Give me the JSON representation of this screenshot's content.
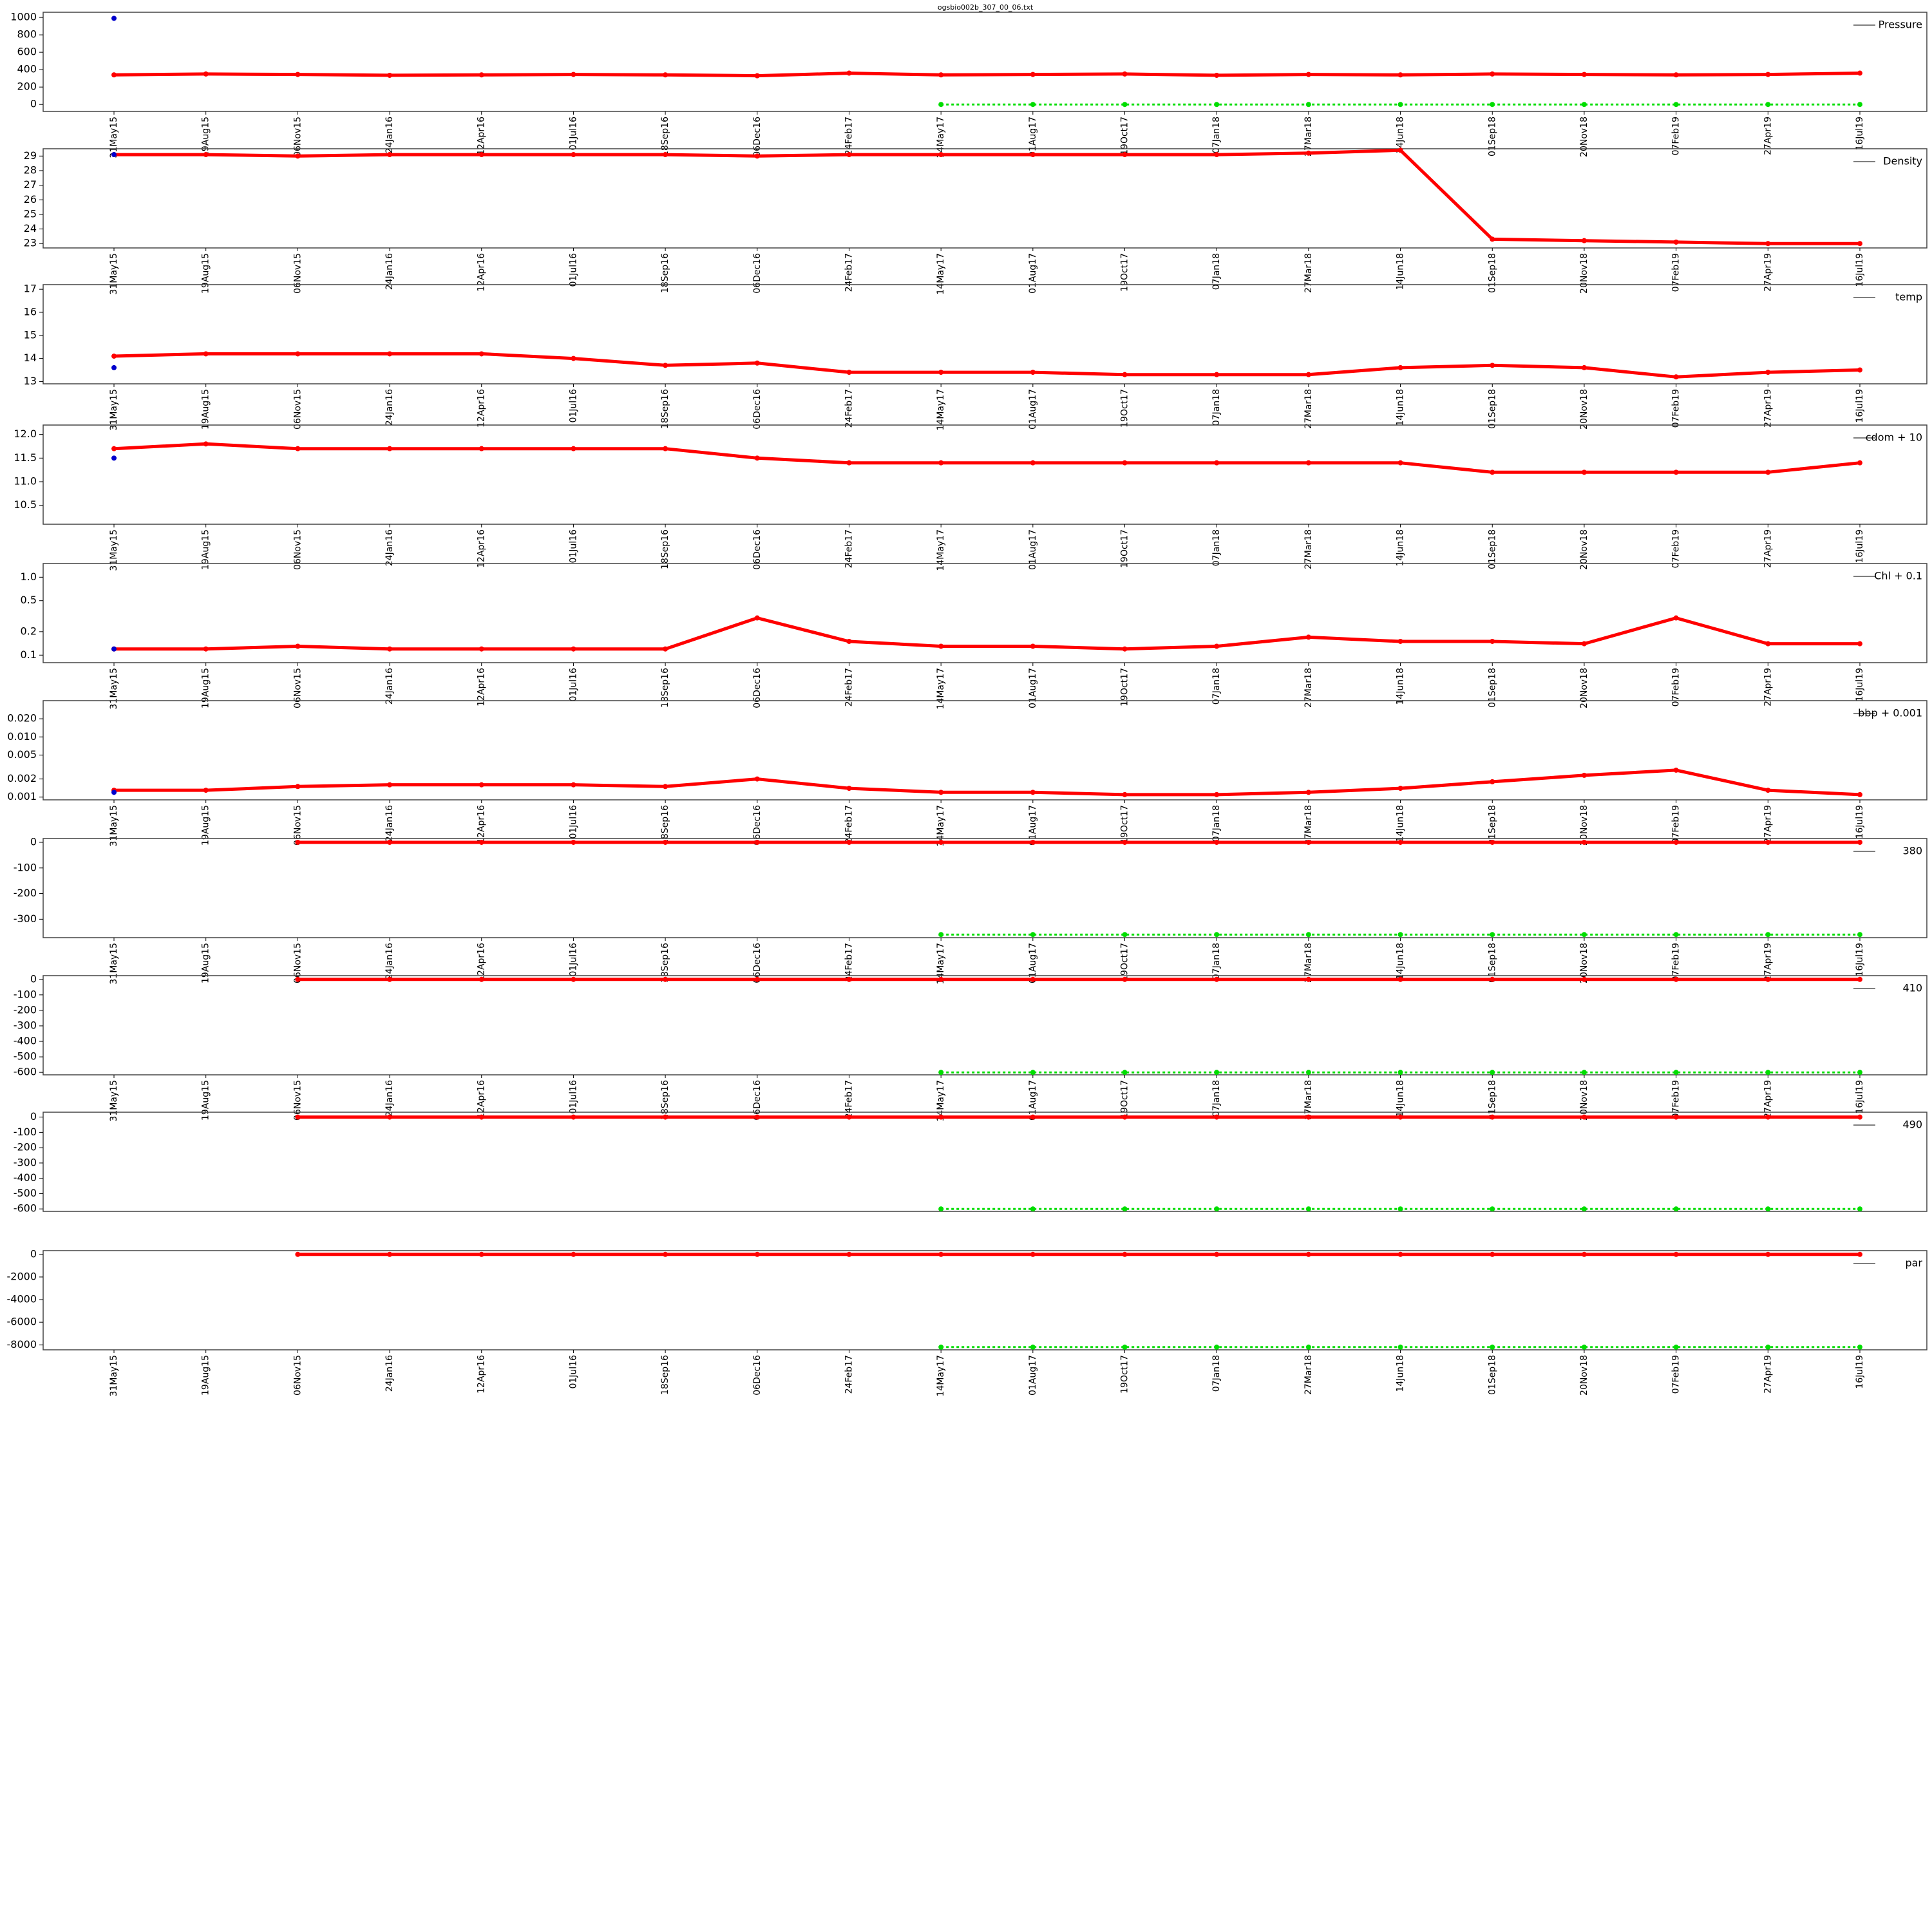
{
  "chart_data": [
    {
      "type": "line",
      "title": "ogsbio002b_307_00_06.txt",
      "log": false,
      "legend": "top-right",
      "show_xticks": true,
      "categories": [
        "31May15",
        "19Aug15",
        "06Nov15",
        "24Jan16",
        "12Apr16",
        "01Jul16",
        "18Sep16",
        "06Dec16",
        "24Feb17",
        "14May17",
        "01Aug17",
        "19Oct17",
        "07Jan18",
        "27Mar18",
        "14Jun18",
        "01Sep18",
        "20Nov18",
        "07Feb19",
        "27Apr19",
        "16Jul19"
      ],
      "ylim": [
        -80,
        1060
      ],
      "yticks": [
        0,
        200,
        400,
        600,
        800,
        1000
      ],
      "series": [
        {
          "name": "Pressure",
          "color": "#ff0000",
          "values": [
            340,
            350,
            345,
            335,
            340,
            345,
            340,
            330,
            360,
            340,
            345,
            350,
            335,
            345,
            340,
            350,
            345,
            340,
            345,
            360
          ]
        },
        {
          "color": "#00dd00",
          "values": [
            null,
            null,
            null,
            null,
            null,
            null,
            null,
            null,
            null,
            0,
            0,
            0,
            0,
            0,
            0,
            0,
            0,
            0,
            0,
            0
          ]
        },
        {
          "color": "#0000cc",
          "values": [
            990,
            null,
            null,
            null,
            null,
            null,
            null,
            null,
            null,
            null,
            null,
            null,
            null,
            null,
            null,
            null,
            null,
            null,
            null,
            null
          ]
        }
      ]
    },
    {
      "type": "line",
      "log": false,
      "legend": "top-right",
      "show_xticks": true,
      "categories": [
        "31May15",
        "19Aug15",
        "06Nov15",
        "24Jan16",
        "12Apr16",
        "01Jul16",
        "18Sep16",
        "06Dec16",
        "24Feb17",
        "14May17",
        "01Aug17",
        "19Oct17",
        "07Jan18",
        "27Mar18",
        "14Jun18",
        "01Sep18",
        "20Nov18",
        "07Feb19",
        "27Apr19",
        "16Jul19"
      ],
      "ylim": [
        22.7,
        29.5
      ],
      "yticks": [
        23,
        24,
        25,
        26,
        27,
        28,
        29
      ],
      "series": [
        {
          "name": "Density",
          "color": "#ff0000",
          "values": [
            29.1,
            29.1,
            29.0,
            29.1,
            29.1,
            29.1,
            29.1,
            29.0,
            29.1,
            29.1,
            29.1,
            29.1,
            29.1,
            29.2,
            29.4,
            23.3,
            23.2,
            23.1,
            23.0,
            23.0
          ]
        },
        {
          "color": "#0000cc",
          "values": [
            29.1,
            null,
            null,
            null,
            null,
            null,
            null,
            null,
            null,
            null,
            null,
            null,
            null,
            null,
            null,
            null,
            null,
            null,
            null,
            null
          ]
        }
      ]
    },
    {
      "type": "line",
      "log": false,
      "legend": "top-right",
      "show_xticks": true,
      "categories": [
        "31May15",
        "19Aug15",
        "06Nov15",
        "24Jan16",
        "12Apr16",
        "01Jul16",
        "18Sep16",
        "06Dec16",
        "24Feb17",
        "14May17",
        "01Aug17",
        "19Oct17",
        "07Jan18",
        "27Mar18",
        "14Jun18",
        "01Sep18",
        "20Nov18",
        "07Feb19",
        "27Apr19",
        "16Jul19"
      ],
      "ylim": [
        12.9,
        17.2
      ],
      "yticks": [
        13,
        14,
        15,
        16,
        17
      ],
      "series": [
        {
          "name": "temp",
          "color": "#ff0000",
          "values": [
            14.1,
            14.2,
            14.2,
            14.2,
            14.2,
            14.0,
            13.7,
            13.8,
            13.4,
            13.4,
            13.4,
            13.3,
            13.3,
            13.3,
            13.6,
            13.7,
            13.6,
            13.2,
            13.4,
            13.5
          ]
        },
        {
          "color": "#0000cc",
          "values": [
            13.6,
            null,
            null,
            null,
            null,
            null,
            null,
            null,
            null,
            null,
            null,
            null,
            null,
            null,
            null,
            null,
            null,
            null,
            null,
            null
          ]
        }
      ]
    },
    {
      "type": "line",
      "log": false,
      "legend": "top-right",
      "show_xticks": true,
      "categories": [
        "31May15",
        "19Aug15",
        "06Nov15",
        "24Jan16",
        "12Apr16",
        "01Jul16",
        "18Sep16",
        "06Dec16",
        "24Feb17",
        "14May17",
        "01Aug17",
        "19Oct17",
        "07Jan18",
        "27Mar18",
        "14Jun18",
        "01Sep18",
        "20Nov18",
        "07Feb19",
        "27Apr19",
        "16Jul19"
      ],
      "ylim": [
        10.1,
        12.2
      ],
      "yticks": [
        10.5,
        {
          "value": 11,
          "label": "11.0"
        },
        11.5,
        {
          "value": 12,
          "label": "12.0"
        }
      ],
      "series": [
        {
          "name": "cdom + 10",
          "color": "#ff0000",
          "values": [
            11.7,
            11.8,
            11.7,
            11.7,
            11.7,
            11.7,
            11.7,
            11.5,
            11.4,
            11.4,
            11.4,
            11.4,
            11.4,
            11.4,
            11.4,
            11.2,
            11.2,
            11.2,
            11.2,
            11.4
          ]
        },
        {
          "color": "#0000cc",
          "values": [
            11.5,
            null,
            null,
            null,
            null,
            null,
            null,
            null,
            null,
            null,
            null,
            null,
            null,
            null,
            null,
            null,
            null,
            null,
            null,
            null
          ]
        }
      ]
    },
    {
      "type": "line",
      "log": true,
      "legend": "top-right",
      "show_xticks": true,
      "categories": [
        "31May15",
        "19Aug15",
        "06Nov15",
        "24Jan16",
        "12Apr16",
        "01Jul16",
        "18Sep16",
        "06Dec16",
        "24Feb17",
        "14May17",
        "01Aug17",
        "19Oct17",
        "07Jan18",
        "27Mar18",
        "14Jun18",
        "01Sep18",
        "20Nov18",
        "07Feb19",
        "27Apr19",
        "16Jul19"
      ],
      "ylim": [
        0.08,
        1.5
      ],
      "yticks": [
        0.1,
        0.2,
        0.5,
        {
          "value": 1,
          "label": "1.0"
        }
      ],
      "series": [
        {
          "name": "Chl + 0.1",
          "color": "#ff0000",
          "values": [
            0.12,
            0.12,
            0.13,
            0.12,
            0.12,
            0.12,
            0.12,
            0.3,
            0.15,
            0.13,
            0.13,
            0.12,
            0.13,
            0.17,
            0.15,
            0.15,
            0.14,
            0.3,
            0.14,
            0.14
          ]
        },
        {
          "color": "#0000cc",
          "values": [
            0.12,
            null,
            null,
            null,
            null,
            null,
            null,
            null,
            null,
            null,
            null,
            null,
            null,
            null,
            null,
            null,
            null,
            null,
            null,
            null
          ]
        }
      ]
    },
    {
      "type": "line",
      "log": true,
      "legend": "top-right",
      "show_xticks": true,
      "categories": [
        "31May15",
        "19Aug15",
        "06Nov15",
        "24Jan16",
        "12Apr16",
        "01Jul16",
        "18Sep16",
        "06Dec16",
        "24Feb17",
        "14May17",
        "01Aug17",
        "19Oct17",
        "07Jan18",
        "27Mar18",
        "14Jun18",
        "01Sep18",
        "20Nov18",
        "07Feb19",
        "27Apr19",
        "16Jul19"
      ],
      "ylim": [
        0.0009,
        0.04
      ],
      "yticks": [
        0.001,
        0.002,
        0.005,
        {
          "value": 0.01,
          "label": "0.010"
        },
        {
          "value": 0.02,
          "label": "0.020"
        }
      ],
      "series": [
        {
          "name": "bbp + 0.001",
          "color": "#ff0000",
          "values": [
            0.0013,
            0.0013,
            0.0015,
            0.0016,
            0.0016,
            0.0016,
            0.0015,
            0.002,
            0.0014,
            0.0012,
            0.0012,
            0.0011,
            0.0011,
            0.0012,
            0.0014,
            0.0018,
            0.0023,
            0.0028,
            0.0013,
            0.0011
          ]
        },
        {
          "color": "#0000cc",
          "values": [
            0.0012,
            null,
            null,
            null,
            null,
            null,
            null,
            null,
            null,
            null,
            null,
            null,
            null,
            null,
            null,
            null,
            null,
            null,
            null,
            null
          ]
        }
      ]
    },
    {
      "type": "line",
      "log": false,
      "legend": "top-right",
      "show_xticks": true,
      "categories": [
        "31May15",
        "19Aug15",
        "06Nov15",
        "24Jan16",
        "12Apr16",
        "01Jul16",
        "18Sep16",
        "06Dec16",
        "24Feb17",
        "14May17",
        "01Aug17",
        "19Oct17",
        "07Jan18",
        "27Mar18",
        "14Jun18",
        "01Sep18",
        "20Nov18",
        "07Feb19",
        "27Apr19",
        "16Jul19"
      ],
      "ylim": [
        -372,
        15
      ],
      "yticks": [
        -300,
        -200,
        -100,
        0
      ],
      "series": [
        {
          "name": "380",
          "color": "#ff0000",
          "values": [
            null,
            null,
            0,
            0,
            0,
            0,
            0,
            0,
            0,
            0,
            0,
            0,
            0,
            0,
            0,
            0,
            0,
            0,
            0,
            0
          ]
        },
        {
          "color": "#00dd00",
          "values": [
            null,
            null,
            null,
            null,
            null,
            null,
            null,
            null,
            null,
            -360,
            -360,
            -360,
            -360,
            -360,
            -360,
            -360,
            -360,
            -360,
            -360,
            -360
          ]
        }
      ]
    },
    {
      "type": "line",
      "log": false,
      "legend": "top-right",
      "show_xticks": true,
      "categories": [
        "31May15",
        "19Aug15",
        "06Nov15",
        "24Jan16",
        "12Apr16",
        "01Jul16",
        "18Sep16",
        "06Dec16",
        "24Feb17",
        "14May17",
        "01Aug17",
        "19Oct17",
        "07Jan18",
        "27Mar18",
        "14Jun18",
        "01Sep18",
        "20Nov18",
        "07Feb19",
        "27Apr19",
        "16Jul19"
      ],
      "ylim": [
        -616,
        24
      ],
      "yticks": [
        -600,
        -500,
        -400,
        -300,
        -200,
        -100,
        0
      ],
      "series": [
        {
          "name": "410",
          "color": "#ff0000",
          "values": [
            null,
            null,
            0,
            0,
            0,
            0,
            0,
            0,
            0,
            0,
            0,
            0,
            0,
            0,
            0,
            0,
            0,
            0,
            0,
            0
          ]
        },
        {
          "color": "#00dd00",
          "values": [
            null,
            null,
            null,
            null,
            null,
            null,
            null,
            null,
            null,
            -600,
            -600,
            -600,
            -600,
            -600,
            -600,
            -600,
            -600,
            -600,
            -600,
            -600
          ]
        }
      ]
    },
    {
      "type": "line",
      "log": false,
      "legend": "top-right",
      "show_xticks": false,
      "categories": [
        "31May15",
        "19Aug15",
        "06Nov15",
        "24Jan16",
        "12Apr16",
        "01Jul16",
        "18Sep16",
        "06Dec16",
        "24Feb17",
        "14May17",
        "01Aug17",
        "19Oct17",
        "07Jan18",
        "27Mar18",
        "14Jun18",
        "01Sep18",
        "20Nov18",
        "07Feb19",
        "27Apr19",
        "16Jul19"
      ],
      "ylim": [
        -616,
        32
      ],
      "yticks": [
        -600,
        -500,
        -400,
        -300,
        -200,
        -100,
        0
      ],
      "series": [
        {
          "name": "490",
          "color": "#ff0000",
          "values": [
            null,
            null,
            0,
            0,
            0,
            0,
            0,
            0,
            0,
            0,
            0,
            0,
            0,
            0,
            0,
            0,
            0,
            0,
            0,
            0
          ]
        },
        {
          "color": "#00dd00",
          "values": [
            null,
            null,
            null,
            null,
            null,
            null,
            null,
            null,
            null,
            -600,
            -600,
            -600,
            -600,
            -600,
            -600,
            -600,
            -600,
            -600,
            -600,
            -600
          ]
        }
      ]
    },
    {
      "type": "line",
      "log": false,
      "legend": "top-right",
      "show_xticks": true,
      "categories": [
        "31May15",
        "19Aug15",
        "06Nov15",
        "24Jan16",
        "12Apr16",
        "01Jul16",
        "18Sep16",
        "06Dec16",
        "24Feb17",
        "14May17",
        "01Aug17",
        "19Oct17",
        "07Jan18",
        "27Mar18",
        "14Jun18",
        "01Sep18",
        "20Nov18",
        "07Feb19",
        "27Apr19",
        "16Jul19"
      ],
      "ylim": [
        -8440,
        330
      ],
      "yticks": [
        -8000,
        -6000,
        -4000,
        -2000,
        0
      ],
      "series": [
        {
          "name": "par",
          "color": "#ff0000",
          "values": [
            null,
            null,
            0,
            0,
            0,
            0,
            0,
            0,
            0,
            0,
            0,
            0,
            0,
            0,
            0,
            0,
            0,
            0,
            0,
            0
          ]
        },
        {
          "color": "#00dd00",
          "values": [
            null,
            null,
            null,
            null,
            null,
            null,
            null,
            null,
            null,
            -8200,
            -8200,
            -8200,
            -8200,
            -8200,
            -8200,
            -8200,
            -8200,
            -8200,
            -8200,
            -8200
          ]
        }
      ]
    }
  ]
}
